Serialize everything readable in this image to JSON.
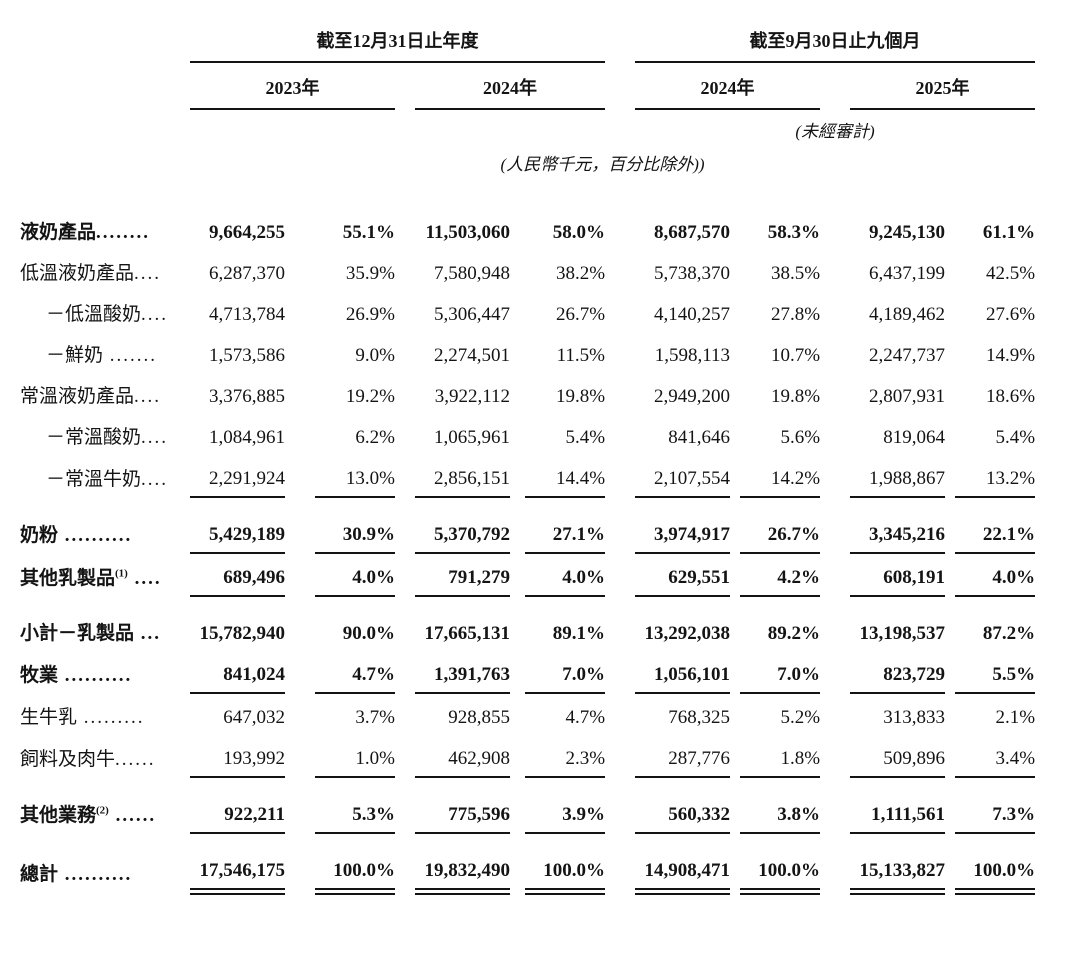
{
  "table": {
    "period_groups": [
      "截至12月31日止年度",
      "截至9月30日止九個月"
    ],
    "year_headers": [
      "2023年",
      "2024年",
      "2024年",
      "2025年"
    ],
    "unaudited_note": "(未經審計)",
    "currency_note": "(人民幣千元，百分比除外))",
    "rows": [
      {
        "label": "液奶產品",
        "sup": "",
        "dots": "........",
        "indent": 0,
        "bold": true,
        "rule": "none",
        "gap": false,
        "values": [
          "9,664,255",
          "55.1%",
          "11,503,060",
          "58.0%",
          "8,687,570",
          "58.3%",
          "9,245,130",
          "61.1%"
        ]
      },
      {
        "label": "低溫液奶產品",
        "sup": "",
        "dots": "....",
        "indent": 0,
        "bold": false,
        "rule": "none",
        "gap": false,
        "values": [
          "6,287,370",
          "35.9%",
          "7,580,948",
          "38.2%",
          "5,738,370",
          "38.5%",
          "6,437,199",
          "42.5%"
        ]
      },
      {
        "label": "－低溫酸奶",
        "sup": "",
        "dots": "....",
        "indent": 1,
        "bold": false,
        "rule": "none",
        "gap": false,
        "values": [
          "4,713,784",
          "26.9%",
          "5,306,447",
          "26.7%",
          "4,140,257",
          "27.8%",
          "4,189,462",
          "27.6%"
        ]
      },
      {
        "label": "－鮮奶",
        "sup": "",
        "dots": " .......",
        "indent": 1,
        "bold": false,
        "rule": "none",
        "gap": false,
        "values": [
          "1,573,586",
          "9.0%",
          "2,274,501",
          "11.5%",
          "1,598,113",
          "10.7%",
          "2,247,737",
          "14.9%"
        ]
      },
      {
        "label": "常溫液奶產品",
        "sup": "",
        "dots": "....",
        "indent": 0,
        "bold": false,
        "rule": "none",
        "gap": false,
        "values": [
          "3,376,885",
          "19.2%",
          "3,922,112",
          "19.8%",
          "2,949,200",
          "19.8%",
          "2,807,931",
          "18.6%"
        ]
      },
      {
        "label": "－常溫酸奶",
        "sup": "",
        "dots": "....",
        "indent": 1,
        "bold": false,
        "rule": "none",
        "gap": false,
        "values": [
          "1,084,961",
          "6.2%",
          "1,065,961",
          "5.4%",
          "841,646",
          "5.6%",
          "819,064",
          "5.4%"
        ]
      },
      {
        "label": "－常溫牛奶",
        "sup": "",
        "dots": "....",
        "indent": 1,
        "bold": false,
        "rule": "single",
        "gap": false,
        "values": [
          "2,291,924",
          "13.0%",
          "2,856,151",
          "14.4%",
          "2,107,554",
          "14.2%",
          "1,988,867",
          "13.2%"
        ]
      },
      {
        "label": "奶粉",
        "sup": "",
        "dots": " ..........",
        "indent": 0,
        "bold": true,
        "rule": "single",
        "gap": true,
        "values": [
          "5,429,189",
          "30.9%",
          "5,370,792",
          "27.1%",
          "3,974,917",
          "26.7%",
          "3,345,216",
          "22.1%"
        ]
      },
      {
        "label": "其他乳製品",
        "sup": "(1)",
        "dots": " ....",
        "indent": 0,
        "bold": true,
        "rule": "single",
        "gap": false,
        "values": [
          "689,496",
          "4.0%",
          "791,279",
          "4.0%",
          "629,551",
          "4.2%",
          "608,191",
          "4.0%"
        ]
      },
      {
        "label": "小計－乳製品",
        "sup": "",
        "dots": " ...",
        "indent": 0,
        "bold": true,
        "rule": "none",
        "gap": true,
        "values": [
          "15,782,940",
          "90.0%",
          "17,665,131",
          "89.1%",
          "13,292,038",
          "89.2%",
          "13,198,537",
          "87.2%"
        ]
      },
      {
        "label": "牧業",
        "sup": "",
        "dots": " ..........",
        "indent": 0,
        "bold": true,
        "rule": "single",
        "gap": false,
        "values": [
          "841,024",
          "4.7%",
          "1,391,763",
          "7.0%",
          "1,056,101",
          "7.0%",
          "823,729",
          "5.5%"
        ]
      },
      {
        "label": "生牛乳",
        "sup": "",
        "dots": " .........",
        "indent": 0,
        "bold": false,
        "rule": "none",
        "gap": false,
        "values": [
          "647,032",
          "3.7%",
          "928,855",
          "4.7%",
          "768,325",
          "5.2%",
          "313,833",
          "2.1%"
        ]
      },
      {
        "label": "飼料及肉牛",
        "sup": "",
        "dots": "......",
        "indent": 0,
        "bold": false,
        "rule": "single",
        "gap": false,
        "values": [
          "193,992",
          "1.0%",
          "462,908",
          "2.3%",
          "287,776",
          "1.8%",
          "509,896",
          "3.4%"
        ]
      },
      {
        "label": "其他業務",
        "sup": "(2)",
        "dots": " ......",
        "indent": 0,
        "bold": true,
        "rule": "single",
        "gap": true,
        "values": [
          "922,211",
          "5.3%",
          "775,596",
          "3.9%",
          "560,332",
          "3.8%",
          "1,111,561",
          "7.3%"
        ]
      },
      {
        "label": "總計",
        "sup": "",
        "dots": " ..........",
        "indent": 0,
        "bold": true,
        "rule": "double",
        "gap": true,
        "values": [
          "17,546,175",
          "100.0%",
          "19,832,490",
          "100.0%",
          "14,908,471",
          "100.0%",
          "15,133,827",
          "100.0%"
        ]
      }
    ]
  }
}
